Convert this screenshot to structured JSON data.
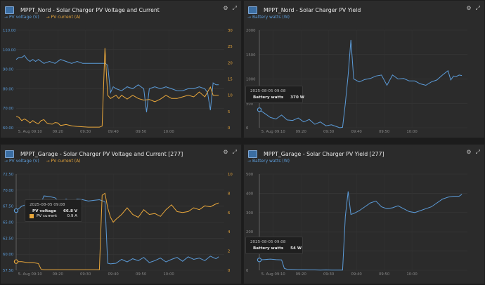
{
  "panels": [
    {
      "title": "MPPT_Nord - Solar Charger PV Voltage and Current",
      "legend": [
        "PV voltage (V)",
        "PV current (A)"
      ],
      "chart_data": {
        "type": "line",
        "title": "MPPT_Nord - Solar Charger PV Voltage and Current",
        "x_ticks": [
          "5. Aug 09:10",
          "09:20",
          "09:30",
          "09:40",
          "09:50",
          "10:00"
        ],
        "y_left_ticks": [
          "60.00",
          "70.00",
          "80.00",
          "90.00",
          "100.00",
          "110.00"
        ],
        "y_right_ticks": [
          "0",
          "5",
          "10",
          "15",
          "20",
          "25",
          "30"
        ],
        "ylim_left": [
          60,
          110
        ],
        "ylim_right": [
          0,
          30
        ],
        "x_range_min": [
          0,
          75
        ],
        "series": [
          {
            "name": "PV voltage (V)",
            "axis": "left",
            "color": "#5b9bd8",
            "x": [
              0,
              1,
              2,
              3,
              4,
              5,
              6,
              7,
              8,
              10,
              12,
              14,
              16,
              18,
              20,
              22,
              24,
              26,
              28,
              30,
              32,
              33,
              34,
              35,
              36,
              38,
              40,
              42,
              44,
              45,
              46,
              47,
              48,
              50,
              52,
              54,
              56,
              58,
              60,
              62,
              64,
              66,
              68,
              69,
              70,
              71,
              72,
              73
            ],
            "y": [
              95,
              96,
              96,
              97,
              95,
              94,
              95,
              94,
              95,
              93,
              94,
              93,
              95,
              94,
              93,
              94,
              93,
              93,
              93,
              93,
              93,
              92,
              78,
              81,
              80,
              79,
              81,
              80,
              82,
              81,
              80,
              68,
              80,
              81,
              80,
              81,
              80,
              79,
              79,
              80,
              80,
              81,
              80,
              78,
              69,
              83,
              82,
              82
            ]
          },
          {
            "name": "PV current (A)",
            "axis": "right",
            "color": "#e9a73b",
            "x": [
              0,
              1,
              2,
              3,
              4,
              5,
              6,
              7,
              8,
              9,
              10,
              11,
              12,
              13,
              14,
              15,
              16,
              18,
              20,
              22,
              24,
              26,
              28,
              30,
              31,
              32,
              33,
              34,
              35,
              36,
              37,
              38,
              40,
              42,
              44,
              46,
              48,
              50,
              52,
              54,
              56,
              58,
              60,
              62,
              64,
              66,
              68,
              69,
              70,
              71,
              72,
              73
            ],
            "y": [
              3.5,
              3.2,
              2.2,
              2.7,
              2.2,
              1.5,
              2.2,
              1.6,
              1.2,
              2.2,
              2.5,
              1.5,
              1.2,
              1.1,
              1.6,
              1.5,
              0.7,
              1.0,
              0.6,
              0.4,
              0.3,
              0.2,
              0.2,
              0.2,
              0.5,
              24.5,
              10,
              9,
              9.5,
              10,
              9,
              10,
              8.8,
              10,
              9,
              8.5,
              8.7,
              8,
              8.8,
              10,
              9,
              9,
              9.5,
              10,
              9.5,
              11,
              9.5,
              11,
              12.5,
              10,
              10,
              10
            ]
          }
        ],
        "tooltip": null
      }
    },
    {
      "title": "MPPT_Nord - Solar Charger PV Yield",
      "legend": [
        "Battery watts (W)"
      ],
      "chart_data": {
        "type": "line",
        "title": "MPPT_Nord - Solar Charger PV Yield",
        "x_ticks": [
          "5. Aug 09:10",
          "09:20",
          "09:30",
          "09:40",
          "09:50",
          "10:00"
        ],
        "y_left_ticks": [
          "0",
          "500",
          "1000",
          "1500",
          "2000"
        ],
        "ylim_left": [
          0,
          2000
        ],
        "x_range_min": [
          0,
          75
        ],
        "series": [
          {
            "name": "Battery watts (W)",
            "axis": "left",
            "color": "#5b9bd8",
            "x": [
              0,
              2,
              4,
              6,
              8,
              10,
              12,
              14,
              16,
              18,
              20,
              22,
              24,
              26,
              28,
              29,
              30,
              31,
              32,
              33,
              34,
              36,
              38,
              40,
              42,
              44,
              46,
              48,
              50,
              52,
              54,
              56,
              58,
              60,
              62,
              64,
              66,
              68,
              69,
              70,
              71,
              72,
              73
            ],
            "y": [
              370,
              290,
              210,
              180,
              260,
              160,
              150,
              200,
              120,
              170,
              70,
              120,
              40,
              60,
              20,
              0,
              10,
              500,
              1080,
              1800,
              1000,
              940,
              990,
              1010,
              1060,
              1080,
              870,
              1080,
              1000,
              1010,
              960,
              960,
              900,
              870,
              940,
              980,
              1080,
              1170,
              980,
              1060,
              1050,
              1080,
              1070
            ]
          }
        ],
        "tooltip": {
          "time": "2025-08-05 09:08",
          "rows": [
            {
              "label": "Battery watts",
              "value": "370 W"
            }
          ]
        }
      }
    },
    {
      "title": "MPPT_Garage - Solar Charger PV Voltage and Current [277]",
      "legend": [
        "PV voltage (V)",
        "PV current (A)"
      ],
      "chart_data": {
        "type": "line",
        "title": "MPPT_Garage - Solar Charger PV Voltage and Current [277]",
        "x_ticks": [
          "5. Aug 09:10",
          "09:20",
          "09:30",
          "09:40",
          "09:50",
          "10:00"
        ],
        "y_left_ticks": [
          "57.50",
          "60.00",
          "62.50",
          "65.00",
          "67.50",
          "70.00",
          "72.50"
        ],
        "y_right_ticks": [
          "0",
          "2",
          "4",
          "6",
          "8",
          "10"
        ],
        "ylim_left": [
          57.5,
          72.5
        ],
        "ylim_right": [
          0,
          10
        ],
        "x_range_min": [
          0,
          75
        ],
        "series": [
          {
            "name": "PV voltage (V)",
            "axis": "left",
            "color": "#5b9bd8",
            "x": [
              0,
              2,
              4,
              6,
              8,
              9,
              10,
              12,
              14,
              16,
              18,
              20,
              22,
              24,
              26,
              28,
              30,
              32,
              33,
              34,
              36,
              38,
              40,
              42,
              44,
              46,
              48,
              50,
              52,
              54,
              56,
              58,
              60,
              62,
              64,
              66,
              68,
              70,
              72,
              73
            ],
            "y": [
              66.8,
              67.5,
              67.8,
              68,
              68.4,
              68,
              69.1,
              69,
              68.8,
              68,
              68.6,
              68.2,
              68.6,
              68.5,
              68.3,
              68.4,
              68.5,
              68.2,
              58.6,
              58.5,
              58.6,
              59.2,
              58.8,
              59.3,
              59,
              59.5,
              58.7,
              59,
              59.4,
              58.8,
              59.2,
              59.5,
              58.9,
              59.6,
              59.2,
              59.4,
              59,
              59.7,
              59.3,
              59.6
            ]
          },
          {
            "name": "PV current (A)",
            "axis": "right",
            "color": "#e9a73b",
            "x": [
              0,
              2,
              4,
              6,
              8,
              9,
              10,
              11,
              12,
              14,
              16,
              18,
              20,
              22,
              24,
              26,
              28,
              30,
              31,
              32,
              33,
              34,
              35,
              36,
              38,
              40,
              42,
              44,
              46,
              48,
              50,
              52,
              54,
              56,
              58,
              60,
              62,
              64,
              66,
              68,
              70,
              72,
              73
            ],
            "y": [
              0.9,
              0.9,
              0.8,
              0.8,
              0.7,
              0.1,
              0.05,
              0.05,
              0.05,
              0.05,
              0.05,
              0.05,
              0.05,
              0.05,
              0.05,
              0.05,
              0.05,
              0.05,
              7.8,
              8,
              6.5,
              5.5,
              5,
              5.3,
              5.8,
              6.5,
              5.8,
              5.5,
              6.3,
              5.8,
              5.9,
              5.6,
              6.3,
              6.8,
              6.1,
              6,
              6.1,
              6.5,
              6.3,
              6.7,
              6.6,
              6.9,
              7
            ]
          }
        ],
        "tooltip": {
          "time": "2025-08-05 09:08",
          "rows": [
            {
              "label": "PV voltage",
              "value": "66.8 V"
            },
            {
              "label": "PV current",
              "value": "0.9 A"
            }
          ]
        }
      }
    },
    {
      "title": "MPPT_Garage - Solar Charger PV Yield [277]",
      "legend": [
        "Battery watts (W)"
      ],
      "chart_data": {
        "type": "line",
        "title": "MPPT_Garage - Solar Charger PV Yield [277]",
        "x_ticks": [
          "5. Aug 09:10",
          "09:20",
          "09:30",
          "09:40",
          "09:50",
          "10:00"
        ],
        "y_left_ticks": [
          "0",
          "100",
          "200",
          "300",
          "400",
          "500"
        ],
        "ylim_left": [
          0,
          500
        ],
        "x_range_min": [
          0,
          75
        ],
        "series": [
          {
            "name": "Battery watts (W)",
            "axis": "left",
            "color": "#5b9bd8",
            "x": [
              0,
              2,
              4,
              6,
              8,
              9,
              10,
              12,
              14,
              16,
              18,
              20,
              22,
              24,
              26,
              28,
              30,
              31,
              32,
              33,
              34,
              36,
              38,
              40,
              42,
              44,
              46,
              48,
              50,
              52,
              54,
              56,
              58,
              60,
              62,
              64,
              66,
              68,
              70,
              72,
              73
            ],
            "y": [
              54,
              56,
              58,
              55,
              54,
              10,
              5,
              4,
              3,
              3,
              2,
              2,
              1,
              2,
              1,
              1,
              1,
              280,
              410,
              290,
              295,
              310,
              330,
              350,
              360,
              330,
              320,
              325,
              335,
              320,
              305,
              300,
              310,
              320,
              330,
              350,
              370,
              380,
              385,
              385,
              395
            ]
          }
        ],
        "tooltip": {
          "time": "2025-08-05 09:08",
          "rows": [
            {
              "label": "Battery watts",
              "value": "54 W"
            }
          ]
        }
      }
    }
  ]
}
